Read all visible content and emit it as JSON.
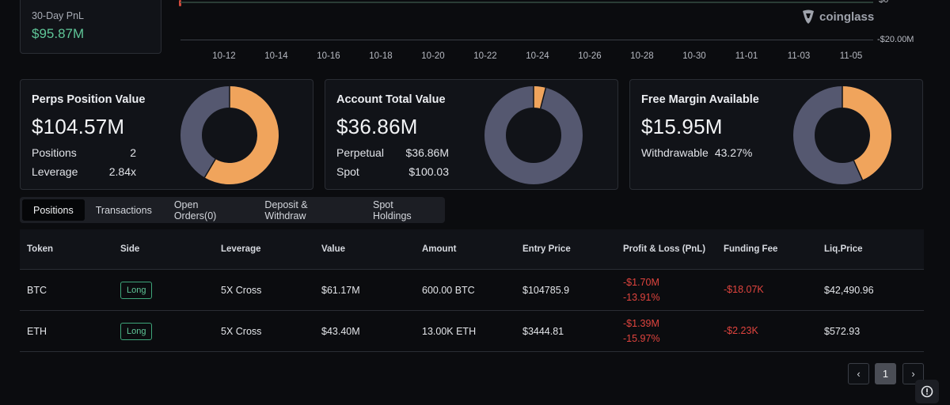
{
  "pnl": {
    "label": "30-Day PnL",
    "value": "$95.87M"
  },
  "chart": {
    "y_top_label": "$0",
    "y_bottom_label": "-$20.00M",
    "x_ticks": [
      "10-12",
      "10-14",
      "10-16",
      "10-18",
      "10-20",
      "10-22",
      "10-24",
      "10-26",
      "10-28",
      "10-30",
      "11-01",
      "11-03",
      "11-05"
    ],
    "watermark": "coinglass"
  },
  "cards": {
    "perps": {
      "title": "Perps Position Value",
      "value": "$104.57M",
      "rows": [
        {
          "label": "Positions",
          "value": "2"
        },
        {
          "label": "Leverage",
          "value": "2.84x"
        }
      ],
      "donut_fraction_orange": 0.585
    },
    "account": {
      "title": "Account Total Value",
      "value": "$36.86M",
      "rows": [
        {
          "label": "Perpetual",
          "value": "$36.86M"
        },
        {
          "label": "Spot",
          "value": "$100.03"
        }
      ],
      "donut_fraction_orange": 0.04
    },
    "margin": {
      "title": "Free Margin Available",
      "value": "$15.95M",
      "rows": [
        {
          "label": "Withdrawable",
          "value": "43.27%"
        }
      ],
      "donut_fraction_orange": 0.4327
    }
  },
  "colors": {
    "orange": "#f0a45c",
    "slate": "#555870",
    "green": "#5fc597",
    "red": "#e0443e"
  },
  "tabs": [
    "Positions",
    "Transactions",
    "Open Orders(0)",
    "Deposit & Withdraw",
    "Spot Holdings"
  ],
  "table": {
    "headers": [
      "Token",
      "Side",
      "Leverage",
      "Value",
      "Amount",
      "Entry Price",
      "Profit & Loss (PnL)",
      "Funding Fee",
      "Liq.Price"
    ],
    "rows": [
      {
        "token": "BTC",
        "side": "Long",
        "leverage": "5X Cross",
        "value": "$61.17M",
        "amount": "600.00 BTC",
        "entry": "$104785.9",
        "pnl": "-$1.70M",
        "pnl_pct": "-13.91%",
        "funding": "-$18.07K",
        "liq": "$42,490.96"
      },
      {
        "token": "ETH",
        "side": "Long",
        "leverage": "5X Cross",
        "value": "$43.40M",
        "amount": "13.00K ETH",
        "entry": "$3444.81",
        "pnl": "-$1.39M",
        "pnl_pct": "-15.97%",
        "funding": "-$2.23K",
        "liq": "$572.93"
      }
    ]
  },
  "pagination": {
    "prev": "‹",
    "current": "1",
    "next": "›"
  }
}
